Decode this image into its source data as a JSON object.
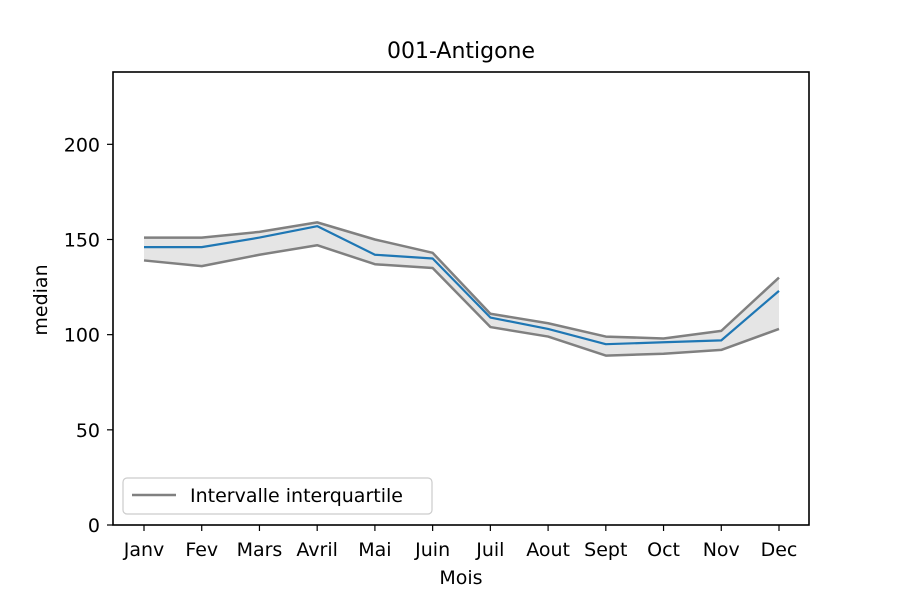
{
  "chart_data": {
    "type": "line",
    "title": "001-Antigone",
    "xlabel": "Mois",
    "ylabel": "median",
    "categories": [
      "Janv",
      "Fev",
      "Mars",
      "Avril",
      "Mai",
      "Juin",
      "Juil",
      "Aout",
      "Sept",
      "Oct",
      "Nov",
      "Dec"
    ],
    "ylim": [
      0,
      238
    ],
    "yticks": [
      0,
      50,
      100,
      150,
      200
    ],
    "grid": false,
    "legend_position": "lower-left",
    "legend": [
      {
        "label": "Intervalle interquartile",
        "color": "#808080"
      }
    ],
    "series": [
      {
        "role": "median",
        "color": "#1f77b4",
        "values": [
          146,
          146,
          151,
          157,
          142,
          140,
          109,
          103,
          95,
          96,
          97,
          123
        ]
      },
      {
        "role": "q3",
        "color": "#808080",
        "values": [
          151,
          151,
          154,
          159,
          150,
          143,
          111,
          106,
          99,
          98,
          102,
          130
        ]
      },
      {
        "role": "q1",
        "color": "#808080",
        "values": [
          139,
          136,
          142,
          147,
          137,
          135,
          104,
          99,
          89,
          90,
          92,
          103
        ]
      }
    ],
    "band_fill": "#e5e5e5"
  }
}
